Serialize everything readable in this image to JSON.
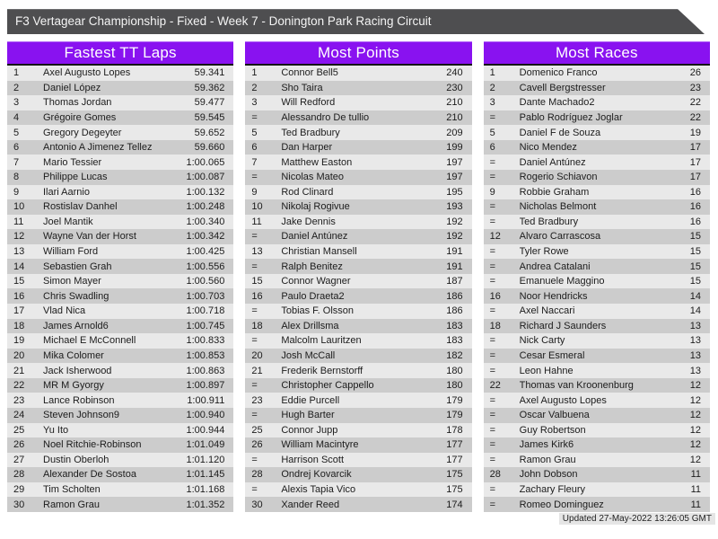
{
  "header": {
    "title": "F3 Vertagear Championship - Fixed - Week 7 - Donington Park Racing Circuit",
    "bar_color": "#4E4E50"
  },
  "accent_color": "#8912F0",
  "row_colors": {
    "odd": "#E9E9E9",
    "even": "#CCCCCC"
  },
  "footer": {
    "updated": "Updated 27-May-2022 13:26:05 GMT"
  },
  "tables": [
    {
      "title": "Fastest TT Laps",
      "rows": [
        {
          "rank": "1",
          "name": "Axel Augusto Lopes",
          "value": "59.341"
        },
        {
          "rank": "2",
          "name": "Daniel López",
          "value": "59.362"
        },
        {
          "rank": "3",
          "name": "Thomas Jordan",
          "value": "59.477"
        },
        {
          "rank": "4",
          "name": "Grégoire Gomes",
          "value": "59.545"
        },
        {
          "rank": "5",
          "name": "Gregory Degeyter",
          "value": "59.652"
        },
        {
          "rank": "6",
          "name": "Antonio A Jimenez Tellez",
          "value": "59.660"
        },
        {
          "rank": "7",
          "name": "Mario Tessier",
          "value": "1:00.065"
        },
        {
          "rank": "8",
          "name": "Philippe Lucas",
          "value": "1:00.087"
        },
        {
          "rank": "9",
          "name": "Ilari Aarnio",
          "value": "1:00.132"
        },
        {
          "rank": "10",
          "name": "Rostislav Danhel",
          "value": "1:00.248"
        },
        {
          "rank": "11",
          "name": "Joel Mantik",
          "value": "1:00.340"
        },
        {
          "rank": "12",
          "name": "Wayne Van der Horst",
          "value": "1:00.342"
        },
        {
          "rank": "13",
          "name": "William Ford",
          "value": "1:00.425"
        },
        {
          "rank": "14",
          "name": "Sebastien Grah",
          "value": "1:00.556"
        },
        {
          "rank": "15",
          "name": "Simon Mayer",
          "value": "1:00.560"
        },
        {
          "rank": "16",
          "name": "Chris Swadling",
          "value": "1:00.703"
        },
        {
          "rank": "17",
          "name": "Vlad Nica",
          "value": "1:00.718"
        },
        {
          "rank": "18",
          "name": "James Arnold6",
          "value": "1:00.745"
        },
        {
          "rank": "19",
          "name": "Michael E McConnell",
          "value": "1:00.833"
        },
        {
          "rank": "20",
          "name": "Mika Colomer",
          "value": "1:00.853"
        },
        {
          "rank": "21",
          "name": "Jack Isherwood",
          "value": "1:00.863"
        },
        {
          "rank": "22",
          "name": "MR M Gyorgy",
          "value": "1:00.897"
        },
        {
          "rank": "23",
          "name": "Lance Robinson",
          "value": "1:00.911"
        },
        {
          "rank": "24",
          "name": "Steven Johnson9",
          "value": "1:00.940"
        },
        {
          "rank": "25",
          "name": "Yu Ito",
          "value": "1:00.944"
        },
        {
          "rank": "26",
          "name": "Noel Ritchie-Robinson",
          "value": "1:01.049"
        },
        {
          "rank": "27",
          "name": "Dustin Oberloh",
          "value": "1:01.120"
        },
        {
          "rank": "28",
          "name": "Alexander De Sostoa",
          "value": "1:01.145"
        },
        {
          "rank": "29",
          "name": "Tim Scholten",
          "value": "1:01.168"
        },
        {
          "rank": "30",
          "name": "Ramon Grau",
          "value": "1:01.352"
        }
      ]
    },
    {
      "title": "Most Points",
      "rows": [
        {
          "rank": "1",
          "name": "Connor Bell5",
          "value": "240"
        },
        {
          "rank": "2",
          "name": "Sho Taira",
          "value": "230"
        },
        {
          "rank": "3",
          "name": "Will Redford",
          "value": "210"
        },
        {
          "rank": "=",
          "name": "Alessandro De tullio",
          "value": "210"
        },
        {
          "rank": "5",
          "name": "Ted Bradbury",
          "value": "209"
        },
        {
          "rank": "6",
          "name": "Dan Harper",
          "value": "199"
        },
        {
          "rank": "7",
          "name": "Matthew Easton",
          "value": "197"
        },
        {
          "rank": "=",
          "name": "Nicolas Mateo",
          "value": "197"
        },
        {
          "rank": "9",
          "name": "Rod Clinard",
          "value": "195"
        },
        {
          "rank": "10",
          "name": "Nikolaj Rogivue",
          "value": "193"
        },
        {
          "rank": "11",
          "name": "Jake Dennis",
          "value": "192"
        },
        {
          "rank": "=",
          "name": "Daniel Antúnez",
          "value": "192"
        },
        {
          "rank": "13",
          "name": "Christian Mansell",
          "value": "191"
        },
        {
          "rank": "=",
          "name": "Ralph Benitez",
          "value": "191"
        },
        {
          "rank": "15",
          "name": "Connor Wagner",
          "value": "187"
        },
        {
          "rank": "16",
          "name": "Paulo Draeta2",
          "value": "186"
        },
        {
          "rank": "=",
          "name": "Tobias F. Olsson",
          "value": "186"
        },
        {
          "rank": "18",
          "name": "Alex Drillsma",
          "value": "183"
        },
        {
          "rank": "=",
          "name": "Malcolm Lauritzen",
          "value": "183"
        },
        {
          "rank": "20",
          "name": "Josh McCall",
          "value": "182"
        },
        {
          "rank": "21",
          "name": "Frederik Bernstorff",
          "value": "180"
        },
        {
          "rank": "=",
          "name": "Christopher Cappello",
          "value": "180"
        },
        {
          "rank": "23",
          "name": "Eddie Purcell",
          "value": "179"
        },
        {
          "rank": "=",
          "name": "Hugh Barter",
          "value": "179"
        },
        {
          "rank": "25",
          "name": "Connor Jupp",
          "value": "178"
        },
        {
          "rank": "26",
          "name": "William Macintyre",
          "value": "177"
        },
        {
          "rank": "=",
          "name": "Harrison Scott",
          "value": "177"
        },
        {
          "rank": "28",
          "name": "Ondrej Kovarcik",
          "value": "175"
        },
        {
          "rank": "=",
          "name": "Alexis Tapia Vico",
          "value": "175"
        },
        {
          "rank": "30",
          "name": "Xander Reed",
          "value": "174"
        }
      ]
    },
    {
      "title": "Most Races",
      "rows": [
        {
          "rank": "1",
          "name": "Domenico Franco",
          "value": "26"
        },
        {
          "rank": "2",
          "name": "Cavell Bergstresser",
          "value": "23"
        },
        {
          "rank": "3",
          "name": "Dante Machado2",
          "value": "22"
        },
        {
          "rank": "=",
          "name": "Pablo Rodríguez Joglar",
          "value": "22"
        },
        {
          "rank": "5",
          "name": "Daniel F de Souza",
          "value": "19"
        },
        {
          "rank": "6",
          "name": "Nico Mendez",
          "value": "17"
        },
        {
          "rank": "=",
          "name": "Daniel Antúnez",
          "value": "17"
        },
        {
          "rank": "=",
          "name": "Rogerio Schiavon",
          "value": "17"
        },
        {
          "rank": "9",
          "name": "Robbie Graham",
          "value": "16"
        },
        {
          "rank": "=",
          "name": "Nicholas Belmont",
          "value": "16"
        },
        {
          "rank": "=",
          "name": "Ted Bradbury",
          "value": "16"
        },
        {
          "rank": "12",
          "name": "Alvaro Carrascosa",
          "value": "15"
        },
        {
          "rank": "=",
          "name": "Tyler Rowe",
          "value": "15"
        },
        {
          "rank": "=",
          "name": "Andrea Catalani",
          "value": "15"
        },
        {
          "rank": "=",
          "name": "Emanuele Maggino",
          "value": "15"
        },
        {
          "rank": "16",
          "name": "Noor Hendricks",
          "value": "14"
        },
        {
          "rank": "=",
          "name": "Axel Naccari",
          "value": "14"
        },
        {
          "rank": "18",
          "name": "Richard J Saunders",
          "value": "13"
        },
        {
          "rank": "=",
          "name": "Nick Carty",
          "value": "13"
        },
        {
          "rank": "=",
          "name": "Cesar Esmeral",
          "value": "13"
        },
        {
          "rank": "=",
          "name": "Leon Hahne",
          "value": "13"
        },
        {
          "rank": "22",
          "name": "Thomas van Kroonenburg",
          "value": "12"
        },
        {
          "rank": "=",
          "name": "Axel Augusto Lopes",
          "value": "12"
        },
        {
          "rank": "=",
          "name": "Oscar Valbuena",
          "value": "12"
        },
        {
          "rank": "=",
          "name": "Guy Robertson",
          "value": "12"
        },
        {
          "rank": "=",
          "name": "James Kirk6",
          "value": "12"
        },
        {
          "rank": "=",
          "name": "Ramon Grau",
          "value": "12"
        },
        {
          "rank": "28",
          "name": "John Dobson",
          "value": "11"
        },
        {
          "rank": "=",
          "name": "Zachary Fleury",
          "value": "11"
        },
        {
          "rank": "=",
          "name": "Romeo Dominguez",
          "value": "11"
        }
      ]
    }
  ]
}
